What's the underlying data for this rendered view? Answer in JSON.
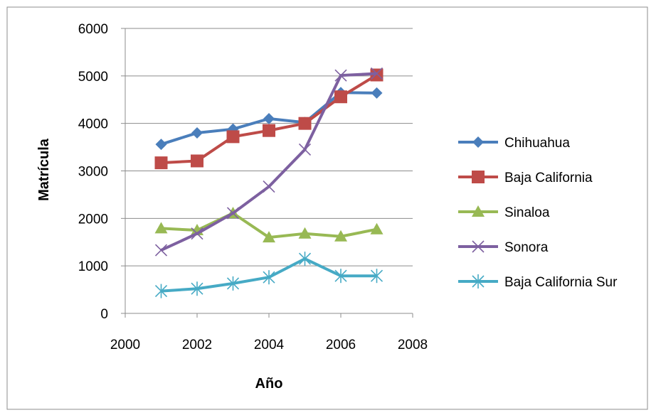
{
  "chart_data": {
    "type": "line",
    "title": "",
    "xlabel": "Año",
    "ylabel": "Matrícula",
    "xlim": [
      2000,
      2008
    ],
    "ylim": [
      0,
      6000
    ],
    "x_ticks": [
      2000,
      2002,
      2004,
      2006,
      2008
    ],
    "y_ticks": [
      0,
      1000,
      2000,
      3000,
      4000,
      5000,
      6000
    ],
    "grid": "horizontal",
    "legend_position": "right",
    "x": [
      2001,
      2002,
      2003,
      2004,
      2005,
      2006,
      2007
    ],
    "series": [
      {
        "name": "Chihuahua",
        "color": "#4a7ebb",
        "marker": "diamond",
        "values": [
          3560,
          3800,
          3880,
          4100,
          4020,
          4650,
          4640
        ]
      },
      {
        "name": "Baja California",
        "color": "#be4b48",
        "marker": "square",
        "values": [
          3170,
          3210,
          3720,
          3850,
          4000,
          4560,
          5020
        ]
      },
      {
        "name": "Sinaloa",
        "color": "#98b954",
        "marker": "triangle",
        "values": [
          1790,
          1750,
          2110,
          1600,
          1680,
          1620,
          1770
        ]
      },
      {
        "name": "Sonora",
        "color": "#7d60a0",
        "marker": "x",
        "values": [
          1330,
          1680,
          2110,
          2670,
          3450,
          5010,
          5050
        ]
      },
      {
        "name": "Baja California Sur",
        "color": "#46aac5",
        "marker": "star",
        "values": [
          470,
          520,
          630,
          760,
          1150,
          790,
          790
        ]
      }
    ]
  }
}
